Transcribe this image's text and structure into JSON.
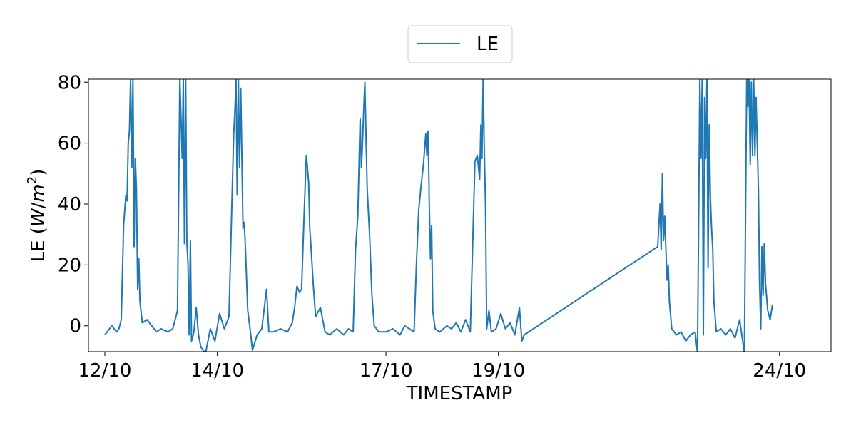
{
  "chart_data": {
    "type": "line",
    "xlabel": "TIMESTAMP",
    "ylabel": "LE (W/m²)",
    "ylabel_parts": {
      "prefix": "LE (",
      "var": "W",
      "sep": "/",
      "unit": "m",
      "exp": "2",
      "suffix": ")"
    },
    "ylim": [
      -8.5,
      81
    ],
    "yticks": [
      0,
      20,
      40,
      60,
      80
    ],
    "xlim": [
      "2023-10-11T17:00",
      "2023-10-24T22:00"
    ],
    "xticks": [
      {
        "date": "2023-10-12",
        "label": "12/10"
      },
      {
        "date": "2023-10-14",
        "label": "14/10"
      },
      {
        "date": "2023-10-17",
        "label": "17/10"
      },
      {
        "date": "2023-10-19",
        "label": "19/10"
      },
      {
        "date": "2023-10-24",
        "label": "24/10"
      }
    ],
    "grid": false,
    "legend": "top-center",
    "series": [
      {
        "name": "LE",
        "color": "#1f77b4",
        "points": [
          [
            "2023-10-12T00:00",
            -3
          ],
          [
            "2023-10-12T03:00",
            0
          ],
          [
            "2023-10-12T05:00",
            -2
          ],
          [
            "2023-10-12T06:00",
            -1
          ],
          [
            "2023-10-12T07:00",
            2
          ],
          [
            "2023-10-12T08:00",
            33
          ],
          [
            "2023-10-12T09:00",
            43
          ],
          [
            "2023-10-12T09:30",
            41
          ],
          [
            "2023-10-12T10:00",
            60
          ],
          [
            "2023-10-12T10:30",
            64
          ],
          [
            "2023-10-12T11:00",
            81
          ],
          [
            "2023-10-12T11:30",
            52
          ],
          [
            "2023-10-12T12:00",
            81
          ],
          [
            "2023-10-12T12:30",
            26
          ],
          [
            "2023-10-12T13:00",
            55
          ],
          [
            "2023-10-12T13:30",
            45
          ],
          [
            "2023-10-12T14:00",
            12
          ],
          [
            "2023-10-12T14:30",
            22
          ],
          [
            "2023-10-12T15:00",
            8
          ],
          [
            "2023-10-12T16:00",
            1
          ],
          [
            "2023-10-12T18:00",
            2
          ],
          [
            "2023-10-12T20:00",
            0
          ],
          [
            "2023-10-12T22:00",
            -2
          ],
          [
            "2023-10-13T00:00",
            -1
          ],
          [
            "2023-10-13T03:00",
            -2
          ],
          [
            "2023-10-13T05:00",
            -1
          ],
          [
            "2023-10-13T07:00",
            5
          ],
          [
            "2023-10-13T08:00",
            81
          ],
          [
            "2023-10-13T09:00",
            55
          ],
          [
            "2023-10-13T09:30",
            81
          ],
          [
            "2023-10-13T10:00",
            27
          ],
          [
            "2023-10-13T10:30",
            81
          ],
          [
            "2023-10-13T11:00",
            28
          ],
          [
            "2023-10-13T11:30",
            20
          ],
          [
            "2023-10-13T12:00",
            -3
          ],
          [
            "2023-10-13T12:30",
            28
          ],
          [
            "2023-10-13T13:00",
            -5
          ],
          [
            "2023-10-13T14:00",
            -2
          ],
          [
            "2023-10-13T15:00",
            6
          ],
          [
            "2023-10-13T16:00",
            -3
          ],
          [
            "2023-10-13T17:00",
            -7
          ],
          [
            "2023-10-13T19:00",
            -9
          ],
          [
            "2023-10-13T21:00",
            -1
          ],
          [
            "2023-10-13T23:00",
            -5
          ],
          [
            "2023-10-14T01:00",
            4
          ],
          [
            "2023-10-14T03:00",
            -1
          ],
          [
            "2023-10-14T05:00",
            3
          ],
          [
            "2023-10-14T07:00",
            63
          ],
          [
            "2023-10-14T07:30",
            70
          ],
          [
            "2023-10-14T08:00",
            81
          ],
          [
            "2023-10-14T08:30",
            43
          ],
          [
            "2023-10-14T09:00",
            81
          ],
          [
            "2023-10-14T09:30",
            52
          ],
          [
            "2023-10-14T10:00",
            78
          ],
          [
            "2023-10-14T10:30",
            55
          ],
          [
            "2023-10-14T11:00",
            32
          ],
          [
            "2023-10-14T11:30",
            34
          ],
          [
            "2023-10-14T12:00",
            26
          ],
          [
            "2023-10-14T13:00",
            5
          ],
          [
            "2023-10-14T14:00",
            -1
          ],
          [
            "2023-10-14T15:00",
            -8
          ],
          [
            "2023-10-14T17:00",
            -3
          ],
          [
            "2023-10-14T19:00",
            -1
          ],
          [
            "2023-10-14T21:00",
            12
          ],
          [
            "2023-10-14T22:00",
            -2
          ],
          [
            "2023-10-15T00:00",
            -2
          ],
          [
            "2023-10-15T03:00",
            -1
          ],
          [
            "2023-10-15T06:00",
            -2
          ],
          [
            "2023-10-15T08:00",
            1
          ],
          [
            "2023-10-15T09:00",
            6
          ],
          [
            "2023-10-15T10:00",
            13
          ],
          [
            "2023-10-15T11:00",
            11
          ],
          [
            "2023-10-15T12:00",
            12
          ],
          [
            "2023-10-15T13:00",
            35
          ],
          [
            "2023-10-15T14:00",
            56
          ],
          [
            "2023-10-15T14:30",
            52
          ],
          [
            "2023-10-15T15:00",
            47
          ],
          [
            "2023-10-15T15:30",
            32
          ],
          [
            "2023-10-15T16:00",
            26
          ],
          [
            "2023-10-15T17:00",
            13
          ],
          [
            "2023-10-15T18:00",
            3
          ],
          [
            "2023-10-15T20:00",
            6
          ],
          [
            "2023-10-15T22:00",
            -2
          ],
          [
            "2023-10-16T00:00",
            -3
          ],
          [
            "2023-10-16T03:00",
            -1
          ],
          [
            "2023-10-16T06:00",
            -3
          ],
          [
            "2023-10-16T08:00",
            -1
          ],
          [
            "2023-10-16T10:00",
            -2
          ],
          [
            "2023-10-16T11:00",
            25
          ],
          [
            "2023-10-16T12:00",
            36
          ],
          [
            "2023-10-16T13:00",
            68
          ],
          [
            "2023-10-16T13:30",
            52
          ],
          [
            "2023-10-16T14:00",
            60
          ],
          [
            "2023-10-16T14:30",
            71
          ],
          [
            "2023-10-16T15:00",
            80
          ],
          [
            "2023-10-16T15:30",
            62
          ],
          [
            "2023-10-16T16:00",
            45
          ],
          [
            "2023-10-16T17:00",
            30
          ],
          [
            "2023-10-16T18:00",
            10
          ],
          [
            "2023-10-16T19:00",
            0
          ],
          [
            "2023-10-16T21:00",
            -2
          ],
          [
            "2023-10-17T00:00",
            -2
          ],
          [
            "2023-10-17T03:00",
            -1
          ],
          [
            "2023-10-17T06:00",
            -3
          ],
          [
            "2023-10-17T08:00",
            0
          ],
          [
            "2023-10-17T10:00",
            -1
          ],
          [
            "2023-10-17T12:00",
            -2
          ],
          [
            "2023-10-17T13:00",
            20
          ],
          [
            "2023-10-17T14:00",
            38
          ],
          [
            "2023-10-17T15:00",
            46
          ],
          [
            "2023-10-17T16:00",
            53
          ],
          [
            "2023-10-17T17:00",
            63
          ],
          [
            "2023-10-17T17:30",
            56
          ],
          [
            "2023-10-17T18:00",
            64
          ],
          [
            "2023-10-17T18:30",
            40
          ],
          [
            "2023-10-17T19:00",
            22
          ],
          [
            "2023-10-17T19:30",
            33
          ],
          [
            "2023-10-17T20:00",
            5
          ],
          [
            "2023-10-17T21:00",
            -1
          ],
          [
            "2023-10-17T23:00",
            -2
          ],
          [
            "2023-10-18T02:00",
            0
          ],
          [
            "2023-10-18T04:00",
            -1
          ],
          [
            "2023-10-18T06:00",
            1
          ],
          [
            "2023-10-18T08:00",
            -2
          ],
          [
            "2023-10-18T10:00",
            2
          ],
          [
            "2023-10-18T12:00",
            -2
          ],
          [
            "2023-10-18T14:00",
            54
          ],
          [
            "2023-10-18T15:00",
            56
          ],
          [
            "2023-10-18T16:00",
            48
          ],
          [
            "2023-10-18T16:30",
            66
          ],
          [
            "2023-10-18T17:00",
            55
          ],
          [
            "2023-10-18T17:30",
            81
          ],
          [
            "2023-10-18T18:00",
            57
          ],
          [
            "2023-10-18T18:30",
            40
          ],
          [
            "2023-10-18T19:00",
            -1
          ],
          [
            "2023-10-18T20:00",
            5
          ],
          [
            "2023-10-18T21:00",
            -2
          ],
          [
            "2023-10-18T23:00",
            -1
          ],
          [
            "2023-10-19T01:00",
            4
          ],
          [
            "2023-10-19T03:00",
            -1
          ],
          [
            "2023-10-19T05:00",
            1
          ],
          [
            "2023-10-19T07:00",
            -3
          ],
          [
            "2023-10-19T09:00",
            6
          ],
          [
            "2023-10-19T10:00",
            -5
          ],
          [
            "2023-10-19T11:00",
            -3
          ],
          [
            "2023-10-21T20:00",
            26
          ],
          [
            "2023-10-21T21:00",
            40
          ],
          [
            "2023-10-21T21:30",
            25
          ],
          [
            "2023-10-21T22:00",
            50
          ],
          [
            "2023-10-21T22:30",
            28
          ],
          [
            "2023-10-21T23:00",
            36
          ],
          [
            "2023-10-22T00:00",
            15
          ],
          [
            "2023-10-22T00:30",
            20
          ],
          [
            "2023-10-22T01:00",
            8
          ],
          [
            "2023-10-22T02:00",
            -1
          ],
          [
            "2023-10-22T04:00",
            -3
          ],
          [
            "2023-10-22T06:00",
            -2
          ],
          [
            "2023-10-22T08:00",
            -5
          ],
          [
            "2023-10-22T10:00",
            -3
          ],
          [
            "2023-10-22T12:00",
            -2
          ],
          [
            "2023-10-22T13:00",
            -9
          ],
          [
            "2023-10-22T14:00",
            81
          ],
          [
            "2023-10-22T14:30",
            55
          ],
          [
            "2023-10-22T15:00",
            81
          ],
          [
            "2023-10-22T15:30",
            -3
          ],
          [
            "2023-10-22T16:00",
            75
          ],
          [
            "2023-10-22T16:30",
            55
          ],
          [
            "2023-10-22T17:00",
            81
          ],
          [
            "2023-10-22T17:30",
            19
          ],
          [
            "2023-10-22T18:00",
            66
          ],
          [
            "2023-10-22T18:30",
            42
          ],
          [
            "2023-10-22T19:00",
            32
          ],
          [
            "2023-10-22T19:30",
            25
          ],
          [
            "2023-10-22T20:00",
            8
          ],
          [
            "2023-10-22T21:00",
            -2
          ],
          [
            "2023-10-22T23:00",
            -1
          ],
          [
            "2023-10-23T01:00",
            -3
          ],
          [
            "2023-10-23T03:00",
            -1
          ],
          [
            "2023-10-23T05:00",
            -4
          ],
          [
            "2023-10-23T07:00",
            2
          ],
          [
            "2023-10-23T09:00",
            -9
          ],
          [
            "2023-10-23T10:00",
            81
          ],
          [
            "2023-10-23T10:30",
            72
          ],
          [
            "2023-10-23T11:00",
            81
          ],
          [
            "2023-10-23T11:30",
            53
          ],
          [
            "2023-10-23T12:00",
            80
          ],
          [
            "2023-10-23T12:30",
            56
          ],
          [
            "2023-10-23T13:00",
            81
          ],
          [
            "2023-10-23T13:30",
            56
          ],
          [
            "2023-10-23T14:00",
            75
          ],
          [
            "2023-10-23T15:00",
            45
          ],
          [
            "2023-10-23T15:30",
            14
          ],
          [
            "2023-10-23T16:00",
            -1
          ],
          [
            "2023-10-23T16:30",
            26
          ],
          [
            "2023-10-23T17:00",
            10
          ],
          [
            "2023-10-23T17:30",
            27
          ],
          [
            "2023-10-23T18:00",
            14
          ],
          [
            "2023-10-23T19:00",
            5
          ],
          [
            "2023-10-23T20:00",
            2
          ],
          [
            "2023-10-23T21:00",
            7
          ]
        ]
      }
    ]
  }
}
